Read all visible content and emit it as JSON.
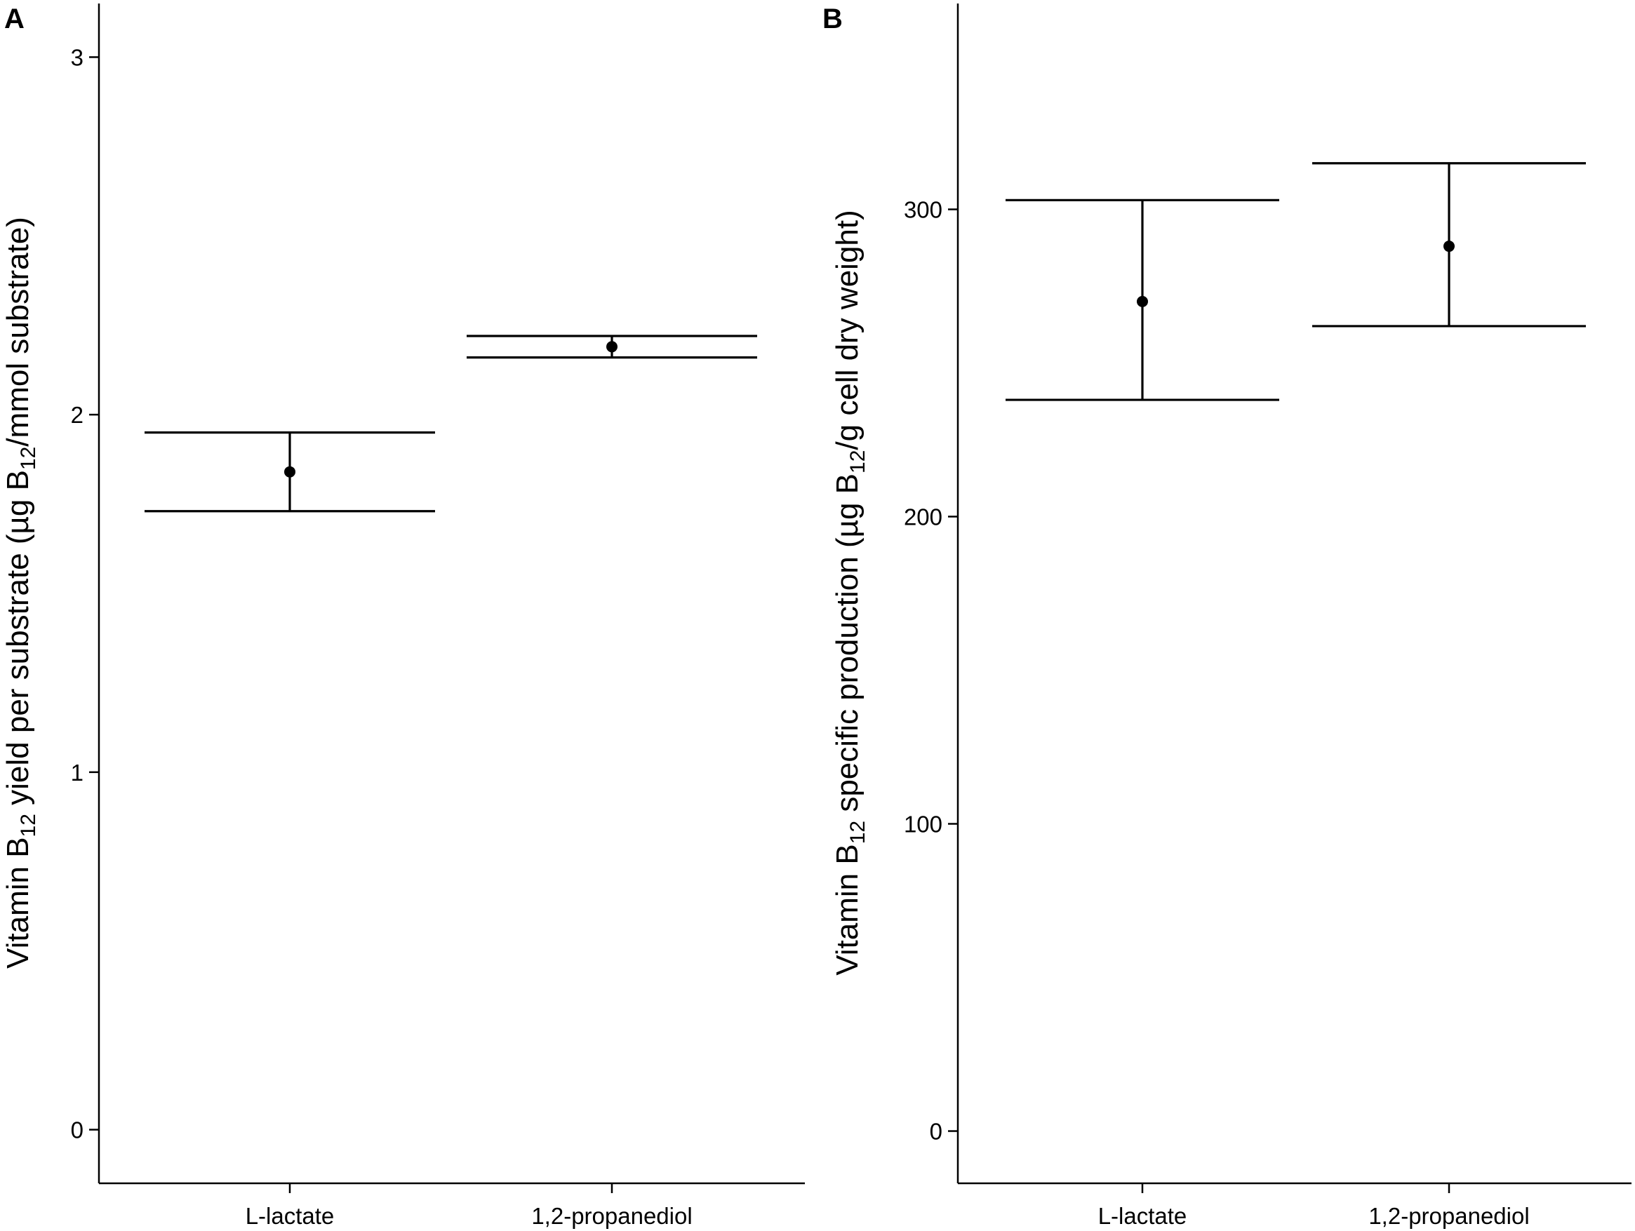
{
  "chart_data": [
    {
      "panel": "A",
      "type": "scatter",
      "title": "",
      "categories": [
        "L-lactate",
        "1,2-propanediol"
      ],
      "ylabel": {
        "prefix": "Vitamin B",
        "sub": "12",
        "middle": " yield per substrate (µg B",
        "sub2": "12",
        "suffix": "/mmol substrate)"
      },
      "xlabel": "",
      "ylim": [
        -0.15,
        3.15
      ],
      "yticks": [
        0,
        1,
        2,
        3
      ],
      "error_bar_style": "wide-caps",
      "values": [
        1.84,
        2.19
      ],
      "lower": [
        1.73,
        2.16
      ],
      "upper": [
        1.95,
        2.22
      ],
      "grid": false
    },
    {
      "panel": "B",
      "type": "scatter",
      "title": "",
      "categories": [
        "L-lactate",
        "1,2-propanediol"
      ],
      "ylabel": {
        "prefix": "Vitamin B",
        "sub": "12",
        "middle": " specific production (µg B",
        "sub2": "12",
        "suffix": "/g cell dry weight)"
      },
      "xlabel": "",
      "ylim": [
        -17,
        367
      ],
      "yticks": [
        0,
        100,
        200,
        300
      ],
      "error_bar_style": "wide-caps",
      "values": [
        270,
        288
      ],
      "lower": [
        238,
        262
      ],
      "upper": [
        303,
        315
      ],
      "grid": false
    }
  ]
}
